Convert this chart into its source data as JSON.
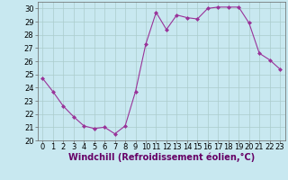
{
  "x": [
    0,
    1,
    2,
    3,
    4,
    5,
    6,
    7,
    8,
    9,
    10,
    11,
    12,
    13,
    14,
    15,
    16,
    17,
    18,
    19,
    20,
    21,
    22,
    23
  ],
  "y": [
    24.7,
    23.7,
    22.6,
    21.8,
    21.1,
    20.9,
    21.0,
    20.5,
    21.1,
    23.7,
    27.3,
    29.7,
    28.4,
    29.5,
    29.3,
    29.2,
    30.0,
    30.1,
    30.1,
    30.1,
    28.9,
    26.6,
    26.1,
    25.4
  ],
  "line_color": "#993399",
  "marker": "D",
  "marker_size": 2.0,
  "background_color": "#c8e8f0",
  "grid_color": "#aacccc",
  "xlabel": "Windchill (Refroidissement éolien,°C)",
  "xlabel_fontsize": 7,
  "xlim": [
    -0.5,
    23.5
  ],
  "ylim": [
    20,
    30.5
  ],
  "yticks": [
    20,
    21,
    22,
    23,
    24,
    25,
    26,
    27,
    28,
    29,
    30
  ],
  "xticks": [
    0,
    1,
    2,
    3,
    4,
    5,
    6,
    7,
    8,
    9,
    10,
    11,
    12,
    13,
    14,
    15,
    16,
    17,
    18,
    19,
    20,
    21,
    22,
    23
  ],
  "tick_fontsize": 6,
  "spine_color": "#666666",
  "line_width": 0.8
}
